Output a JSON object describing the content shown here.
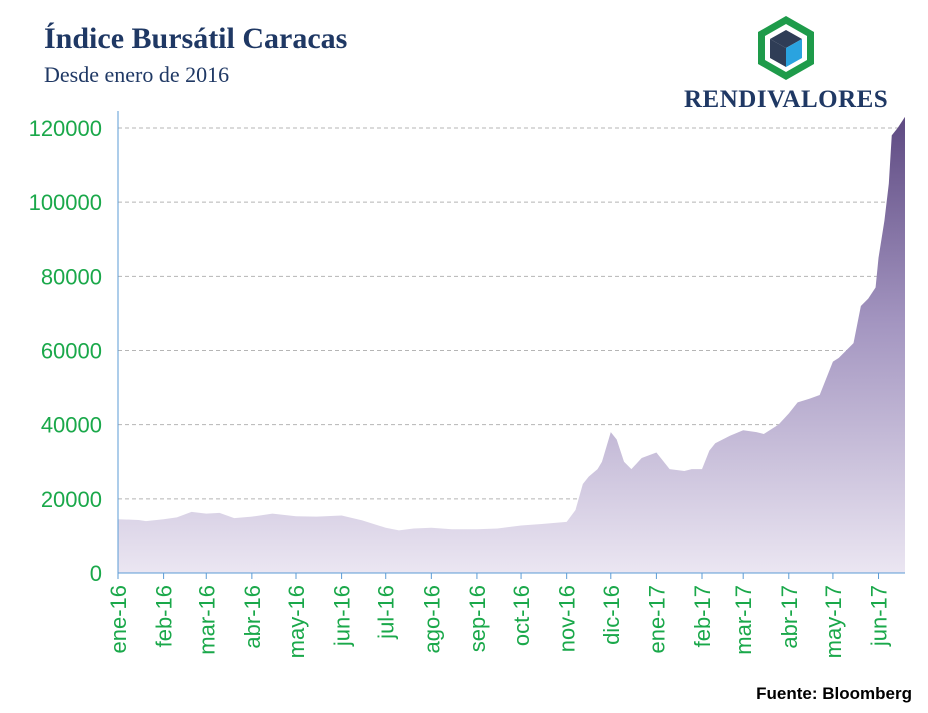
{
  "header": {
    "title": "Índice Bursátil Caracas",
    "subtitle": "Desde enero de 2016"
  },
  "logo": {
    "text": "RENDIVALORES",
    "icon": "cube-logo-icon",
    "colors": {
      "frame": "#1e9b4a",
      "cube_dark": "#2f3d56",
      "cube_light": "#2aa3df"
    }
  },
  "source": "Fuente: Bloomberg",
  "colors": {
    "accent": "#1aa84a",
    "area_top": "#5e4a82",
    "area_mid": "#a395c0",
    "area_bottom": "#ebe6f2",
    "axis": "#5b9bd5",
    "grid": "#b5b5b5",
    "title": "#1f3864"
  },
  "chart_data": {
    "type": "area",
    "title": "Índice Bursátil Caracas",
    "subtitle": "Desde enero de 2016",
    "xlabel": "",
    "ylabel": "",
    "ylim": [
      0,
      120000
    ],
    "yticks": [
      "0",
      "20000",
      "40000",
      "60000",
      "80000",
      "100000",
      "120000"
    ],
    "xticks": [
      "ene-16",
      "feb-16",
      "mar-16",
      "abr-16",
      "may-16",
      "jun-16",
      "jul-16",
      "ago-16",
      "sep-16",
      "oct-16",
      "nov-16",
      "dic-16",
      "ene-17",
      "feb-17",
      "mar-17",
      "abr-17",
      "may-17",
      "jun-17"
    ],
    "grid": "horizontal dashed",
    "legend": "none",
    "x": [
      "2016-01-01",
      "2016-01-15",
      "2016-01-20",
      "2016-02-01",
      "2016-02-10",
      "2016-02-20",
      "2016-03-01",
      "2016-03-10",
      "2016-03-20",
      "2016-04-01",
      "2016-04-15",
      "2016-05-01",
      "2016-05-15",
      "2016-06-01",
      "2016-06-15",
      "2016-07-01",
      "2016-07-10",
      "2016-07-20",
      "2016-08-01",
      "2016-08-15",
      "2016-09-01",
      "2016-09-15",
      "2016-10-01",
      "2016-10-15",
      "2016-11-01",
      "2016-11-07",
      "2016-11-12",
      "2016-11-16",
      "2016-11-22",
      "2016-11-25",
      "2016-12-01",
      "2016-12-05",
      "2016-12-10",
      "2016-12-15",
      "2016-12-22",
      "2017-01-01",
      "2017-01-10",
      "2017-01-20",
      "2017-01-25",
      "2017-02-01",
      "2017-02-06",
      "2017-02-10",
      "2017-02-20",
      "2017-03-01",
      "2017-03-10",
      "2017-03-15",
      "2017-03-25",
      "2017-04-01",
      "2017-04-07",
      "2017-04-15",
      "2017-04-22",
      "2017-05-01",
      "2017-05-05",
      "2017-05-10",
      "2017-05-15",
      "2017-05-20",
      "2017-05-25",
      "2017-05-30",
      "2017-06-01",
      "2017-06-05",
      "2017-06-08",
      "2017-06-10",
      "2017-06-14",
      "2017-06-19"
    ],
    "series": [
      {
        "values": [
          14500,
          14300,
          14000,
          14500,
          15000,
          16500,
          16000,
          16200,
          14800,
          15200,
          16000,
          15300,
          15200,
          15500,
          14200,
          12200,
          11500,
          12000,
          12200,
          11800,
          11800,
          12000,
          12800,
          13200,
          13800,
          17000,
          24000,
          26000,
          28000,
          30000,
          38000,
          36000,
          30000,
          28000,
          31000,
          32500,
          28000,
          27500,
          28000,
          28000,
          33000,
          35000,
          37000,
          38500,
          38000,
          37500,
          40000,
          43000,
          46000,
          47000,
          48000,
          57000,
          58000,
          60000,
          62000,
          72000,
          74000,
          77000,
          85000,
          95000,
          105000,
          118000,
          120000,
          123000
        ]
      }
    ]
  }
}
